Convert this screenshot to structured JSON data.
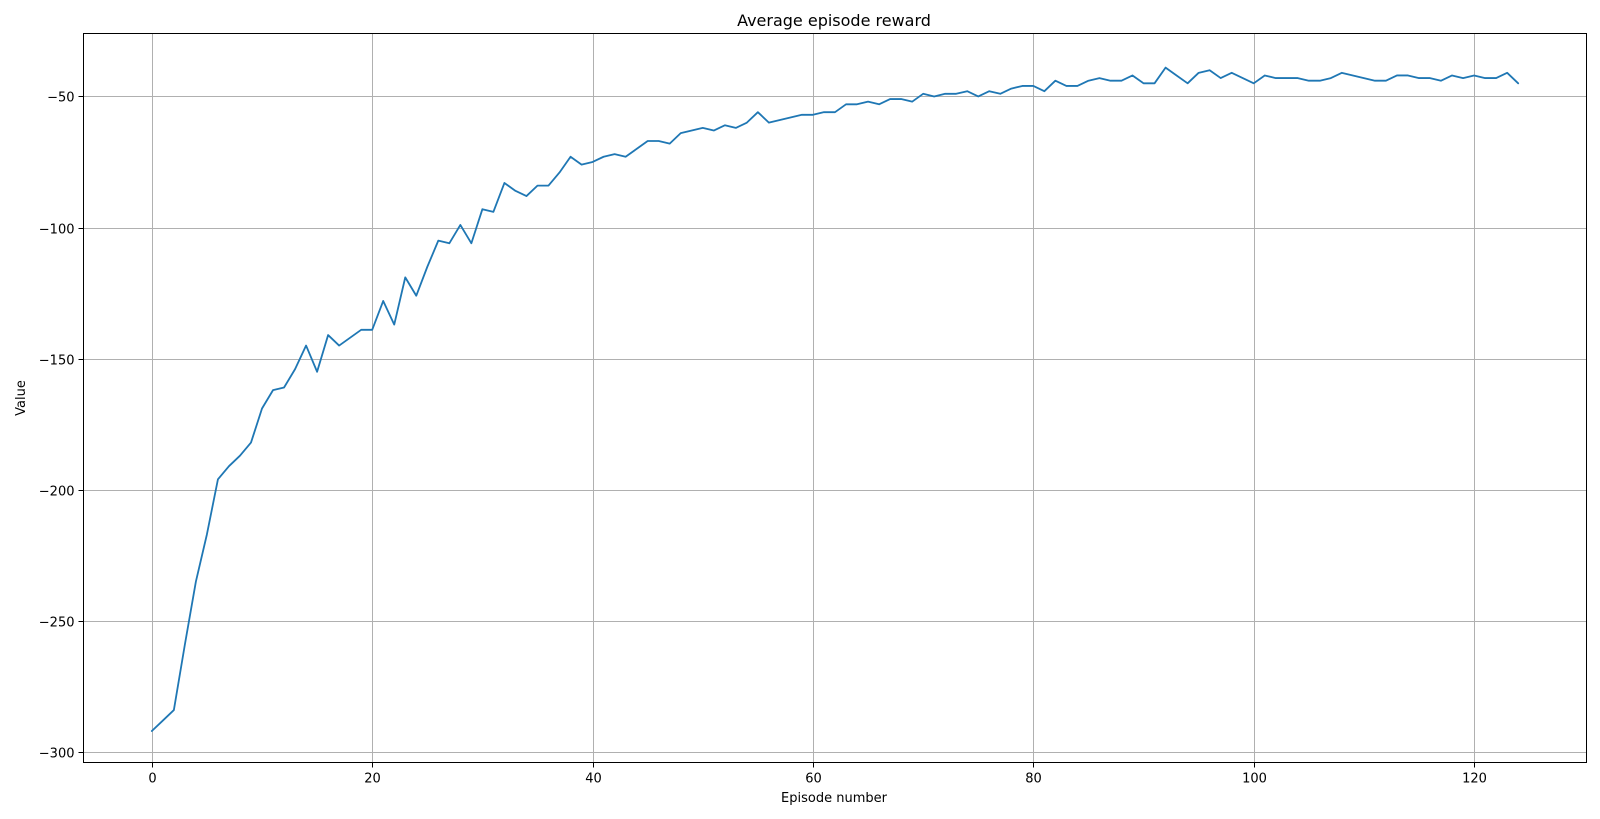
{
  "chart_data": {
    "type": "line",
    "title": "Average episode reward",
    "xlabel": "Episode number",
    "ylabel": "Value",
    "xlim": [
      -6.2,
      130.2
    ],
    "ylim": [
      -304,
      -26
    ],
    "xticks": [
      0,
      20,
      40,
      60,
      80,
      100,
      120
    ],
    "yticks": [
      -300,
      -250,
      -200,
      -150,
      -100,
      -50
    ],
    "grid": true,
    "line_color": "#1f77b4",
    "series": [
      {
        "x": [
          0,
          1,
          2,
          3,
          4,
          5,
          6,
          7,
          8,
          9,
          10,
          11,
          12,
          13,
          14,
          15,
          16,
          17,
          18,
          19,
          20,
          21,
          22,
          23,
          24,
          25,
          26,
          27,
          28,
          29,
          30,
          31,
          32,
          33,
          34,
          35,
          36,
          37,
          38,
          39,
          40,
          41,
          42,
          43,
          44,
          45,
          46,
          47,
          48,
          49,
          50,
          51,
          52,
          53,
          54,
          55,
          56,
          57,
          58,
          59,
          60,
          61,
          62,
          63,
          64,
          65,
          66,
          67,
          68,
          69,
          70,
          71,
          72,
          73,
          74,
          75,
          76,
          77,
          78,
          79,
          80,
          81,
          82,
          83,
          84,
          85,
          86,
          87,
          88,
          89,
          90,
          91,
          92,
          93,
          94,
          95,
          96,
          97,
          98,
          99,
          100,
          101,
          102,
          103,
          104,
          105,
          106,
          107,
          108,
          109,
          110,
          111,
          112,
          113,
          114,
          115,
          116,
          117,
          118,
          119,
          120,
          121,
          122,
          123,
          124
        ],
        "values": [
          -292,
          -288,
          -284,
          -259,
          -235,
          -217,
          -196,
          -191,
          -187,
          -182,
          -169,
          -162,
          -161,
          -154,
          -145,
          -155,
          -141,
          -145,
          -142,
          -139,
          -139,
          -128,
          -137,
          -119,
          -126,
          -115,
          -105,
          -106,
          -99,
          -106,
          -93,
          -94,
          -83,
          -86,
          -88,
          -84,
          -84,
          -79,
          -73,
          -76,
          -75,
          -73,
          -72,
          -73,
          -70,
          -67,
          -67,
          -68,
          -64,
          -63,
          -62,
          -63,
          -61,
          -62,
          -60,
          -56,
          -60,
          -59,
          -58,
          -57,
          -57,
          -56,
          -56,
          -53,
          -53,
          -52,
          -53,
          -51,
          -51,
          -52,
          -49,
          -50,
          -49,
          -49,
          -48,
          -50,
          -48,
          -49,
          -47,
          -46,
          -46,
          -48,
          -44,
          -46,
          -46,
          -44,
          -43,
          -44,
          -44,
          -42,
          -45,
          -45,
          -39,
          -42,
          -45,
          -41,
          -40,
          -43,
          -41,
          -43,
          -45,
          -42,
          -43,
          -43,
          -43,
          -44,
          -44,
          -43,
          -41,
          -42,
          -43,
          -44,
          -44,
          -42,
          -42,
          -43,
          -43,
          -44,
          -42,
          -43,
          -42,
          -43,
          -43,
          -41,
          -45
        ]
      }
    ]
  }
}
